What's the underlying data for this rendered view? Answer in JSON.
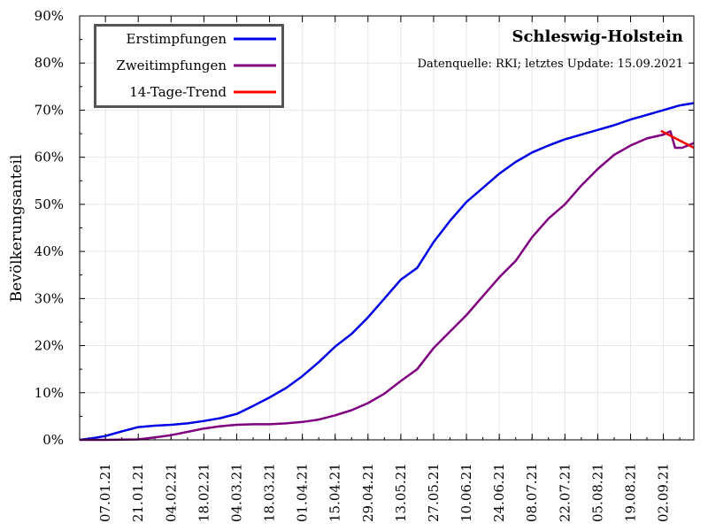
{
  "chart_data": {
    "type": "line",
    "title": "Schleswig-Holstein",
    "subtitle": "Datenquelle: RKI; letztes Update: 15.09.2021",
    "ylabel": "Bevölkerungsanteil",
    "xlabel": "",
    "ylim": [
      0,
      90
    ],
    "yticks": [
      0,
      10,
      20,
      30,
      40,
      50,
      60,
      70,
      80,
      90
    ],
    "ytick_suffix": "%",
    "xlim": [
      "2020-12-27",
      "2021-09-15"
    ],
    "xticks": [
      "07.01.21",
      "21.01.21",
      "04.02.21",
      "18.02.21",
      "04.03.21",
      "18.03.21",
      "01.04.21",
      "15.04.21",
      "29.04.21",
      "13.05.21",
      "27.05.21",
      "10.06.21",
      "24.06.21",
      "08.07.21",
      "22.07.21",
      "05.08.21",
      "19.08.21",
      "02.09.21"
    ],
    "grid": true,
    "legend_position": "top-left",
    "series": [
      {
        "name": "Erstimpfungen",
        "color": "#0000e6",
        "x": [
          "2020-12-27",
          "2021-01-01",
          "2021-01-07",
          "2021-01-14",
          "2021-01-21",
          "2021-01-28",
          "2021-02-04",
          "2021-02-11",
          "2021-02-18",
          "2021-02-25",
          "2021-03-04",
          "2021-03-11",
          "2021-03-18",
          "2021-03-25",
          "2021-04-01",
          "2021-04-08",
          "2021-04-15",
          "2021-04-22",
          "2021-04-29",
          "2021-05-06",
          "2021-05-13",
          "2021-05-20",
          "2021-05-27",
          "2021-06-03",
          "2021-06-10",
          "2021-06-17",
          "2021-06-24",
          "2021-07-01",
          "2021-07-08",
          "2021-07-15",
          "2021-07-22",
          "2021-07-29",
          "2021-08-05",
          "2021-08-12",
          "2021-08-19",
          "2021-08-26",
          "2021-09-02",
          "2021-09-09",
          "2021-09-15"
        ],
        "y": [
          0,
          0.3,
          0.8,
          1.8,
          2.7,
          3.0,
          3.2,
          3.5,
          4.0,
          4.6,
          5.5,
          7.2,
          9.0,
          11.0,
          13.5,
          16.5,
          19.8,
          22.5,
          26.0,
          30.0,
          34.0,
          36.5,
          42.0,
          46.5,
          50.5,
          53.5,
          56.5,
          59.0,
          61.0,
          62.5,
          63.8,
          64.8,
          65.8,
          66.8,
          68.0,
          69.0,
          70.0,
          71.0,
          71.5
        ]
      },
      {
        "name": "Zweitimpfungen",
        "color": "#800080",
        "x": [
          "2020-12-27",
          "2021-01-07",
          "2021-01-21",
          "2021-01-28",
          "2021-02-04",
          "2021-02-11",
          "2021-02-18",
          "2021-02-25",
          "2021-03-04",
          "2021-03-11",
          "2021-03-18",
          "2021-03-25",
          "2021-04-01",
          "2021-04-08",
          "2021-04-15",
          "2021-04-22",
          "2021-04-29",
          "2021-05-06",
          "2021-05-13",
          "2021-05-20",
          "2021-05-27",
          "2021-06-03",
          "2021-06-10",
          "2021-06-17",
          "2021-06-24",
          "2021-07-01",
          "2021-07-08",
          "2021-07-15",
          "2021-07-22",
          "2021-07-29",
          "2021-08-05",
          "2021-08-12",
          "2021-08-19",
          "2021-08-26",
          "2021-09-02",
          "2021-09-05",
          "2021-09-07",
          "2021-09-10",
          "2021-09-15"
        ],
        "y": [
          0,
          0,
          0.1,
          0.5,
          1.0,
          1.7,
          2.4,
          2.9,
          3.2,
          3.3,
          3.3,
          3.5,
          3.8,
          4.3,
          5.2,
          6.3,
          7.8,
          9.8,
          12.5,
          15.0,
          19.5,
          23.0,
          26.5,
          30.5,
          34.5,
          38.0,
          43.0,
          47.0,
          50.0,
          54.0,
          57.5,
          60.5,
          62.5,
          64.0,
          64.8,
          65.5,
          62.0,
          62.0,
          63.0
        ]
      },
      {
        "name": "14-Tage-Trend",
        "color": "#ff0000",
        "x": [
          "2021-09-01",
          "2021-09-15"
        ],
        "y": [
          65.6,
          62.0
        ]
      }
    ]
  }
}
